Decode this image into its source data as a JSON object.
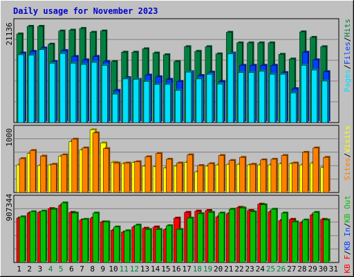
{
  "title": "Daily usage for November 2023",
  "colors": {
    "background": "#c0c0c0",
    "title": "#0000cc",
    "hits": "#008040",
    "files": "#0040ff",
    "pages": "#00e0ff",
    "visits": "#ffff00",
    "sites": "#ff8000",
    "kb_in": "#ff0000",
    "kb_out": "#00c000",
    "weekend_label": "#008040",
    "day_label": "#000000"
  },
  "chart_data": [
    {
      "type": "bar",
      "panel": "hits-files-pages",
      "ytick_label": "21136",
      "ylim": [
        0,
        24500
      ],
      "legend": [
        {
          "text": "Pages",
          "color": "#00e0ff"
        },
        {
          "text": "/",
          "color": "#000000"
        },
        {
          "text": "Files",
          "color": "#0040ff"
        },
        {
          "text": "/",
          "color": "#000000"
        },
        {
          "text": "Hits",
          "color": "#008040"
        }
      ],
      "categories": [
        "1",
        "2",
        "3",
        "4",
        "5",
        "6",
        "7",
        "8",
        "9",
        "10",
        "11",
        "12",
        "13",
        "14",
        "15",
        "16",
        "17",
        "18",
        "19",
        "20",
        "21",
        "22",
        "23",
        "24",
        "25",
        "26",
        "27",
        "28",
        "29",
        "30",
        "31"
      ],
      "series": [
        {
          "key": "hits",
          "values": [
            20900,
            22700,
            22700,
            18500,
            21600,
            21800,
            22200,
            21300,
            21600,
            14400,
            16600,
            16600,
            17400,
            16400,
            16000,
            14400,
            17900,
            16800,
            17900,
            16200,
            21300,
            18800,
            18800,
            18800,
            18800,
            16100,
            15000,
            21400,
            20100,
            17900,
            0
          ]
        },
        {
          "key": "files",
          "values": [
            16400,
            16800,
            17600,
            14400,
            17000,
            15600,
            14800,
            15600,
            14400,
            7600,
            10600,
            10200,
            11200,
            10800,
            10200,
            9700,
            12000,
            11100,
            11900,
            9700,
            16400,
            13500,
            13500,
            13500,
            13500,
            11800,
            8000,
            16600,
            14800,
            12000,
            0
          ]
        },
        {
          "key": "pages",
          "values": [
            16000,
            15900,
            17200,
            14000,
            16300,
            14000,
            13700,
            14200,
            13500,
            6700,
            10300,
            10200,
            9700,
            9000,
            9000,
            7600,
            11900,
            10300,
            11400,
            9100,
            16200,
            11800,
            11800,
            12100,
            11400,
            11400,
            7000,
            13500,
            12400,
            9800,
            0
          ]
        }
      ]
    },
    {
      "type": "bar",
      "panel": "visits-sites",
      "ytick_label": "1000",
      "ylim": [
        0,
        1070
      ],
      "legend": [
        {
          "text": "Sites",
          "color": "#ff8000"
        },
        {
          "text": "/",
          "color": "#000000"
        },
        {
          "text": "Visits",
          "color": "#ffff00"
        }
      ],
      "categories": [
        "1",
        "2",
        "3",
        "4",
        "5",
        "6",
        "7",
        "8",
        "9",
        "10",
        "11",
        "12",
        "13",
        "14",
        "15",
        "16",
        "17",
        "18",
        "19",
        "20",
        "21",
        "22",
        "23",
        "24",
        "25",
        "26",
        "27",
        "28",
        "29",
        "30",
        "31"
      ],
      "series": [
        {
          "key": "visits",
          "values": [
            440,
            620,
            430,
            440,
            580,
            810,
            680,
            1000,
            790,
            480,
            460,
            480,
            420,
            410,
            390,
            420,
            480,
            330,
            420,
            440,
            450,
            450,
            440,
            440,
            440,
            460,
            460,
            440,
            470,
            400,
            0
          ]
        },
        {
          "key": "sites",
          "values": [
            540,
            670,
            580,
            450,
            600,
            850,
            710,
            950,
            700,
            470,
            470,
            490,
            570,
            620,
            530,
            470,
            600,
            430,
            460,
            590,
            510,
            560,
            450,
            520,
            530,
            590,
            470,
            640,
            710,
            560,
            0
          ]
        }
      ]
    },
    {
      "type": "bar",
      "panel": "kbin-kbout",
      "ytick_label": "907344",
      "ylim": [
        0,
        1060000
      ],
      "legend": [
        {
          "text": "KB F",
          "color": "#ff0000"
        },
        {
          "text": "/",
          "color": "#000000"
        },
        {
          "text": "KB In",
          "color": "#0040ff"
        },
        {
          "text": "/",
          "color": "#000000"
        },
        {
          "text": "KB Out",
          "color": "#00c000"
        }
      ],
      "categories": [
        "1",
        "2",
        "3",
        "4",
        "5",
        "6",
        "7",
        "8",
        "9",
        "10",
        "11",
        "12",
        "13",
        "14",
        "15",
        "16",
        "17",
        "18",
        "19",
        "20",
        "21",
        "22",
        "23",
        "24",
        "25",
        "26",
        "27",
        "28",
        "29",
        "30",
        "31"
      ],
      "series": [
        {
          "key": "kb_in",
          "values": [
            700000,
            780000,
            790000,
            850000,
            900000,
            790000,
            670000,
            700000,
            640000,
            510000,
            480000,
            560000,
            540000,
            560000,
            520000,
            700000,
            790000,
            810000,
            820000,
            720000,
            770000,
            870000,
            820000,
            920000,
            800000,
            660000,
            680000,
            630000,
            750000,
            680000,
            0
          ]
        },
        {
          "key": "kb_out",
          "values": [
            720000,
            800000,
            810000,
            840000,
            940000,
            780000,
            680000,
            780000,
            640000,
            560000,
            500000,
            590000,
            520000,
            520000,
            580000,
            520000,
            700000,
            770000,
            790000,
            780000,
            840000,
            860000,
            800000,
            910000,
            840000,
            780000,
            640000,
            670000,
            790000,
            670000,
            0
          ]
        }
      ]
    }
  ],
  "days": {
    "labels": [
      "1",
      "2",
      "3",
      "4",
      "5",
      "6",
      "7",
      "8",
      "9",
      "10",
      "11",
      "12",
      "13",
      "14",
      "15",
      "16",
      "17",
      "18",
      "19",
      "20",
      "21",
      "22",
      "23",
      "24",
      "25",
      "26",
      "27",
      "28",
      "29",
      "30",
      "31"
    ],
    "weekend": [
      4,
      5,
      11,
      12,
      18,
      19,
      25,
      26
    ]
  }
}
